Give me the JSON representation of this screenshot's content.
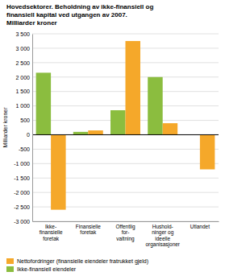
{
  "chart_data": {
    "type": "bar",
    "title": "Hovedsektorer. Beholdning av ikke-finansiell og\nfinansiell kapital ved utgangen av 2007.\nMilliarder kroner",
    "ylabel": "Milliarder kroner",
    "categories": [
      "Ikke-\nfinansielle\nforetak",
      "Finansielle\nforetak",
      "Offentlig\nfor-\nvaltning",
      "Hushold-\nninger og\nideelle\norganisasjoner",
      "Utlandet"
    ],
    "series": [
      {
        "name": "Ikke-finansiell eiendeler",
        "color": "#8BBD3F",
        "values": [
          2150,
          100,
          850,
          2000,
          0
        ]
      },
      {
        "name": "Nettofordringer (finansielle eiendeler fratrukket gjeld)",
        "color": "#F5A82A",
        "values": [
          -2600,
          150,
          3250,
          400,
          -1200
        ]
      }
    ],
    "ylim": [
      -3000,
      3500
    ],
    "yticks": [
      {
        "value": -3000,
        "label": "-3 000"
      },
      {
        "value": -2500,
        "label": "-2 500"
      },
      {
        "value": -2000,
        "label": "-2 000"
      },
      {
        "value": -1500,
        "label": "-1 500"
      },
      {
        "value": -1000,
        "label": "-1 000"
      },
      -500,
      0,
      500,
      {
        "value": 1000,
        "label": "1 000"
      },
      {
        "value": 1500,
        "label": "1 500"
      },
      {
        "value": 2000,
        "label": "2 000"
      },
      {
        "value": 2500,
        "label": "2 500"
      },
      {
        "value": 3000,
        "label": "3 000"
      },
      {
        "value": 3500,
        "label": "3 500"
      }
    ],
    "grid": true,
    "legend": "bottom-left"
  }
}
